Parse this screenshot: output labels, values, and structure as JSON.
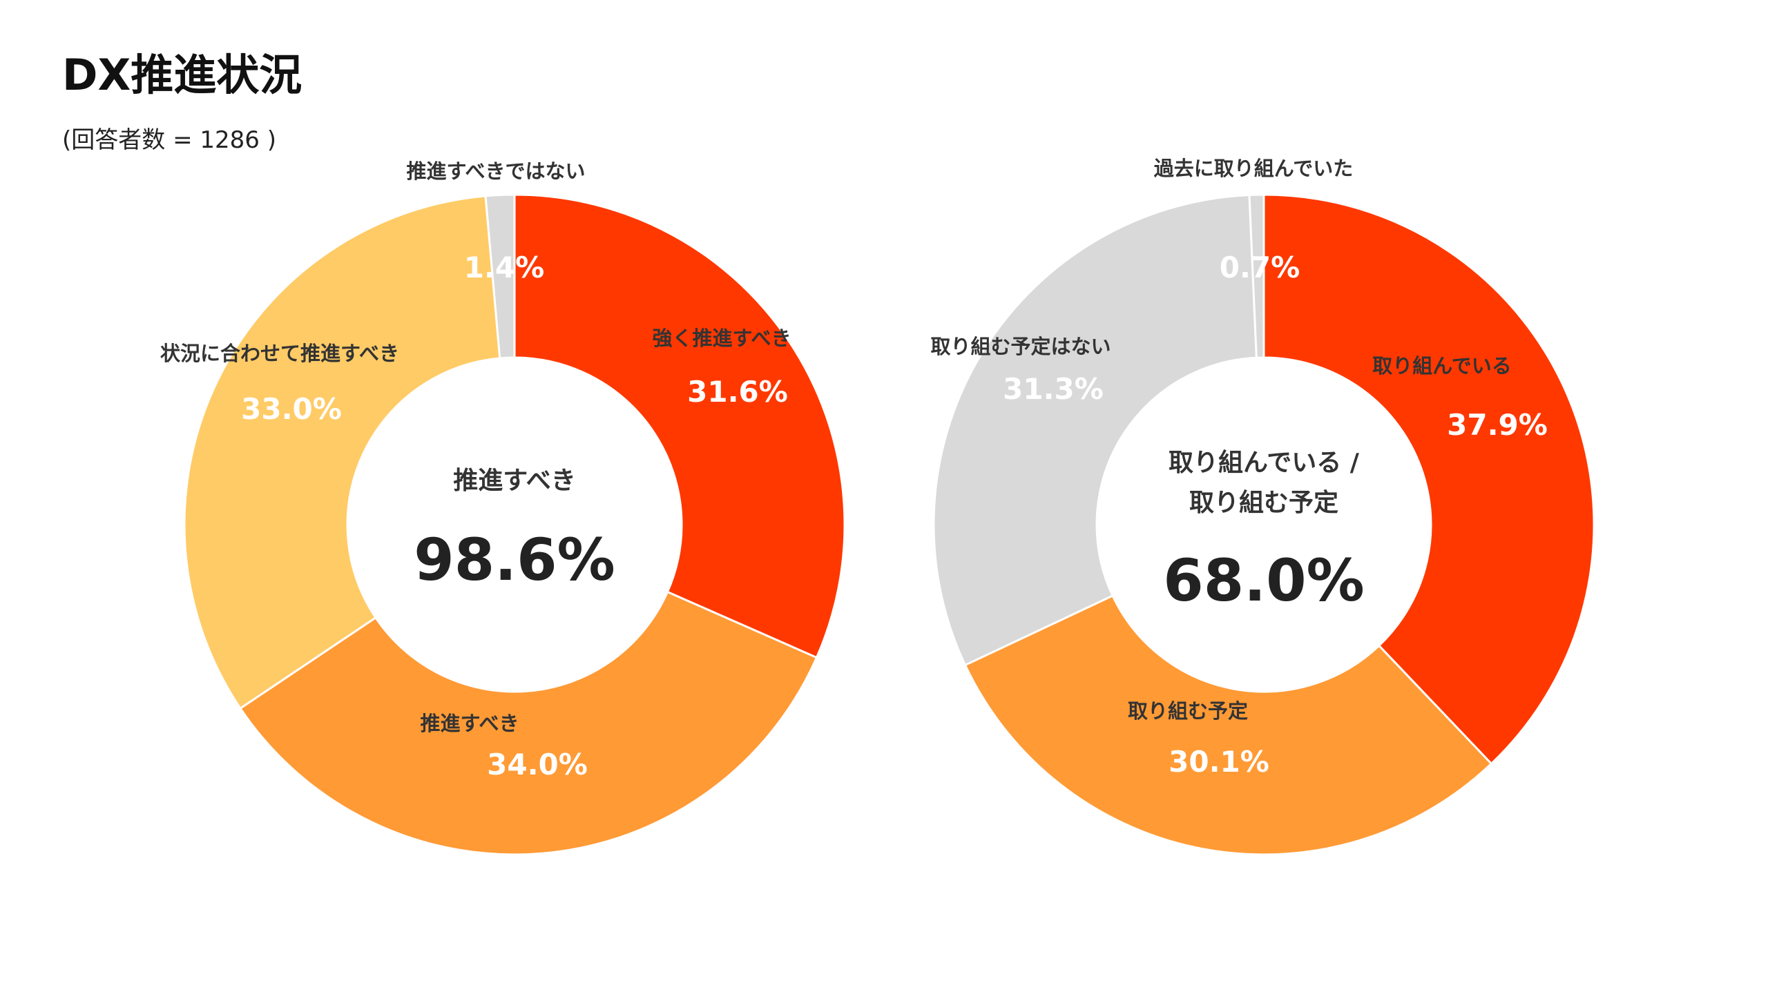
{
  "title": "DX推進状況",
  "subtitle": "(回答者数 = 1286 )",
  "chart_data": [
    {
      "type": "pie",
      "donut": true,
      "center_caption": [
        "推進すべき"
      ],
      "center_value": "98.6%",
      "slices": [
        {
          "label": "強く推進すべき",
          "value": 31.6,
          "display": "31.6%",
          "color": "#FF3800"
        },
        {
          "label": "推進すべき",
          "value": 34.0,
          "display": "34.0%",
          "color": "#FF9A35"
        },
        {
          "label": "状況に合わせて推進すべき",
          "value": 33.0,
          "display": "33.0%",
          "color": "#FFCB66"
        },
        {
          "label": "推進すべきではない",
          "value": 1.4,
          "display": "1.4%",
          "color": "#D9D9D9"
        }
      ]
    },
    {
      "type": "pie",
      "donut": true,
      "center_caption": [
        "取り組んでいる /",
        "取り組む予定"
      ],
      "center_value": "68.0%",
      "slices": [
        {
          "label": "取り組んでいる",
          "value": 37.9,
          "display": "37.9%",
          "color": "#FF3800"
        },
        {
          "label": "取り組む予定",
          "value": 30.1,
          "display": "30.1%",
          "color": "#FF9A35"
        },
        {
          "label": "取り組む予定はない",
          "value": 31.3,
          "display": "31.3%",
          "color": "#D9D9D9"
        },
        {
          "label": "過去に取り組んでいた",
          "value": 0.7,
          "display": "0.7%",
          "color": "#D9D9D9"
        }
      ]
    }
  ]
}
